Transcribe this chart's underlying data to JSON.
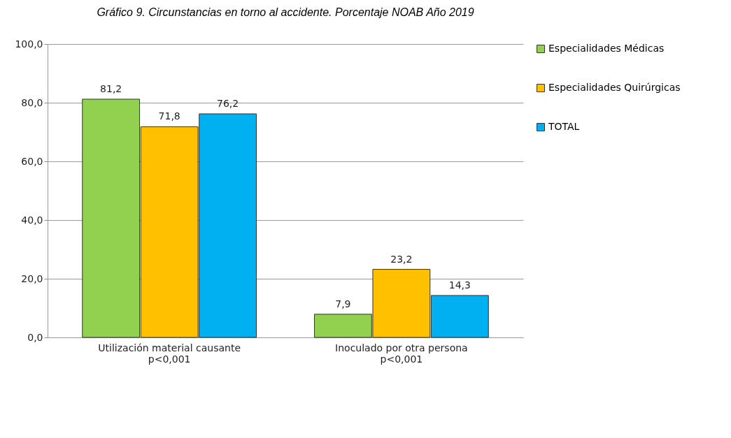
{
  "chart_data": {
    "type": "bar",
    "title": "Gráfico 9. Circunstancias en torno al accidente. Porcentaje NOAB Año 2019",
    "categories": [
      "Utilización material causante\np<0,001",
      "Inoculado por otra persona\np<0,001"
    ],
    "series": [
      {
        "name": "Especialidades Médicas",
        "color": "#92d050",
        "values": [
          81.2,
          7.9
        ],
        "value_labels": [
          "81,2",
          "7,9"
        ]
      },
      {
        "name": "Especialidades Quirúrgicas",
        "color": "#ffc000",
        "values": [
          71.8,
          23.2
        ],
        "value_labels": [
          "71,8",
          "23,2"
        ]
      },
      {
        "name": "TOTAL",
        "color": "#00b0f0",
        "values": [
          76.2,
          14.3
        ],
        "value_labels": [
          "76,2",
          "14,3"
        ]
      }
    ],
    "ylim": [
      0,
      100
    ],
    "yticks": [
      {
        "value": 0,
        "label": "0,0"
      },
      {
        "value": 20,
        "label": "20,0"
      },
      {
        "value": 40,
        "label": "40,0"
      },
      {
        "value": 60,
        "label": "60,0"
      },
      {
        "value": 80,
        "label": "80,0"
      },
      {
        "value": 100,
        "label": "100,0"
      }
    ],
    "grid": "y",
    "legend": "right"
  }
}
